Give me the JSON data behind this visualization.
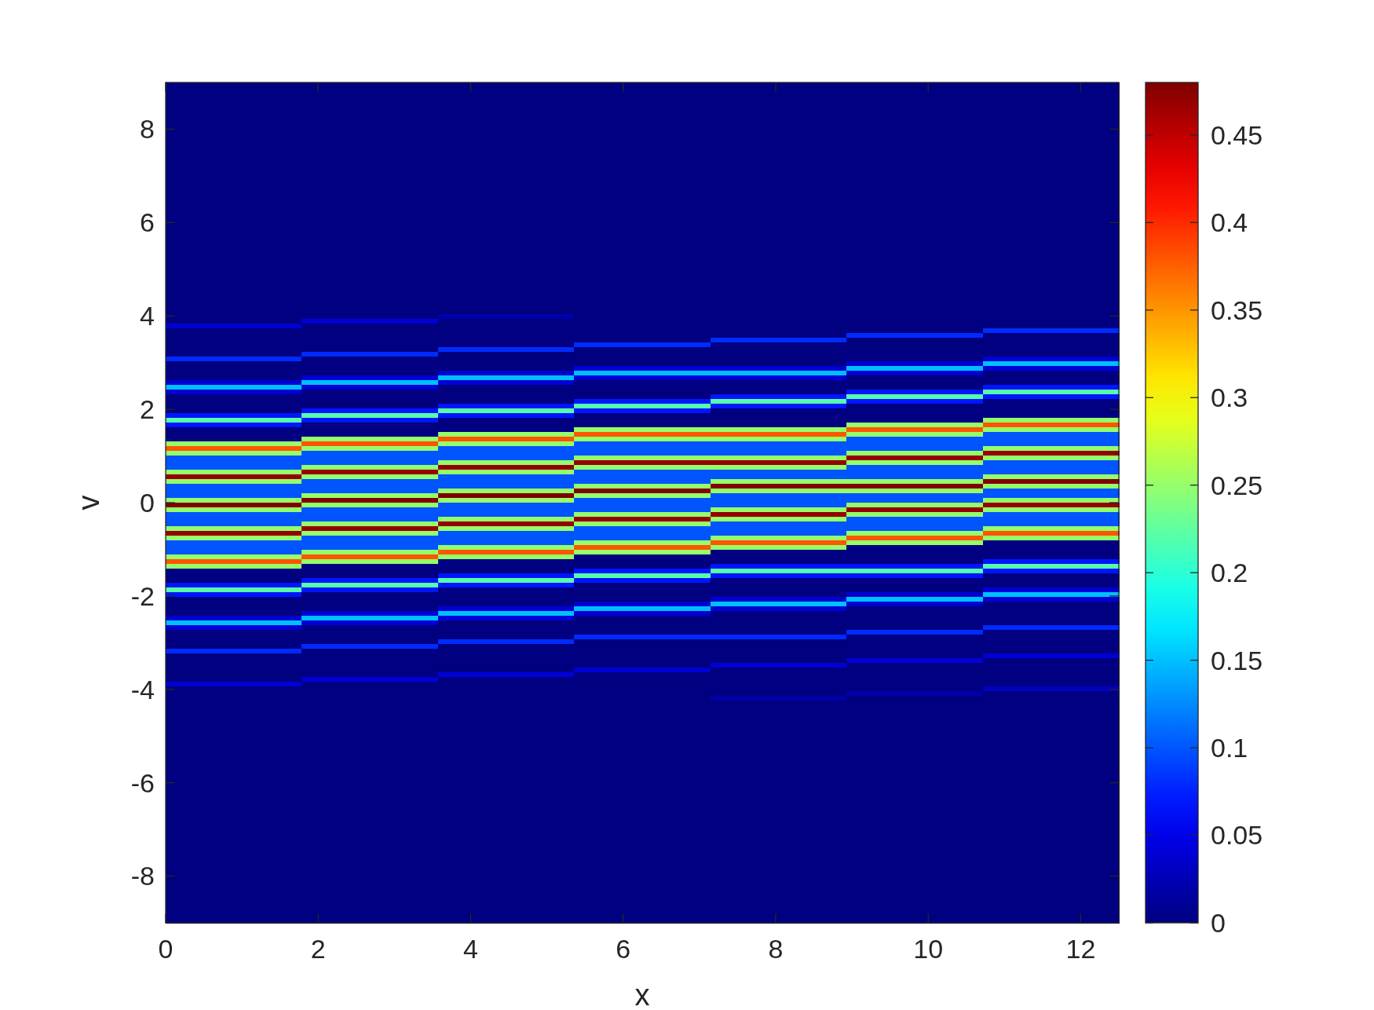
{
  "chart_data": {
    "type": "heatmap",
    "xlabel": "x",
    "ylabel": "v",
    "x": [
      0.89,
      2.68,
      4.46,
      6.25,
      8.04,
      9.82,
      11.61
    ],
    "xlim": [
      0,
      12.5
    ],
    "xticks": [
      0,
      2,
      4,
      6,
      8,
      10,
      12
    ],
    "ylim": [
      -9,
      9
    ],
    "yticks": [
      -8,
      -6,
      -4,
      -2,
      0,
      2,
      4,
      6,
      8
    ],
    "clim": [
      0,
      0.48
    ],
    "cticks": [
      0,
      0.05,
      0.1,
      0.15,
      0.2,
      0.25,
      0.3,
      0.35,
      0.4,
      0.45
    ],
    "cells": [
      [
        0,
        0,
        0,
        0,
        0,
        0,
        0
      ],
      [
        0,
        0,
        0,
        0,
        0,
        0,
        0
      ],
      [
        0,
        0,
        0,
        0,
        0,
        0,
        0
      ],
      [
        0,
        0,
        0,
        0,
        0,
        0,
        0
      ],
      [
        0,
        0,
        0,
        0,
        0,
        0,
        0
      ],
      [
        0,
        0,
        0,
        0,
        0,
        0,
        0
      ],
      [
        0,
        0,
        0,
        0,
        0,
        0,
        0
      ],
      [
        0,
        0,
        0,
        0,
        0,
        0,
        0
      ],
      [
        0,
        0,
        0,
        0,
        0,
        0,
        0
      ],
      [
        0,
        0,
        0,
        0,
        0,
        0,
        0
      ],
      [
        0,
        0,
        0,
        0,
        0,
        0,
        0
      ],
      [
        0,
        0,
        0,
        0,
        0,
        0,
        0
      ],
      [
        0,
        0,
        0,
        0,
        0,
        0,
        0
      ],
      [
        0,
        0,
        0,
        0,
        0,
        0,
        0
      ],
      [
        0,
        0,
        0,
        0,
        0,
        0,
        0
      ],
      [
        0,
        0,
        0,
        0,
        0,
        0,
        0
      ],
      [
        0,
        0,
        0,
        0,
        0,
        0,
        0
      ],
      [
        0,
        0,
        0,
        0,
        0,
        0,
        0
      ],
      [
        0,
        0,
        0,
        0,
        0,
        0,
        0
      ],
      [
        0,
        0,
        0,
        0,
        0,
        0,
        0
      ],
      [
        0,
        0,
        0,
        0,
        0,
        0,
        0
      ],
      [
        0,
        0,
        0,
        0,
        0,
        0,
        0
      ],
      [
        0,
        0,
        0,
        0,
        0,
        0,
        0
      ],
      [
        0,
        0,
        0,
        0,
        0,
        0,
        0
      ],
      [
        0,
        0,
        0,
        0,
        0,
        0,
        0
      ],
      [
        0,
        0,
        0,
        0,
        0,
        0,
        0
      ],
      [
        0,
        0,
        0,
        0,
        0,
        0,
        0
      ],
      [
        0,
        0,
        0,
        0,
        0,
        0,
        0
      ],
      [
        0,
        0,
        0,
        0,
        0,
        0,
        0
      ],
      [
        0,
        0,
        0,
        0,
        0,
        0,
        0
      ],
      [
        0,
        0,
        0,
        0,
        0,
        0,
        0
      ],
      [
        0,
        0,
        0,
        0,
        0,
        0,
        0
      ],
      [
        0,
        0,
        0,
        0,
        0,
        0,
        0
      ],
      [
        0,
        0,
        0,
        0,
        0,
        0,
        0
      ],
      [
        0,
        0,
        0,
        0,
        0,
        0,
        0
      ],
      [
        0,
        0,
        0,
        0,
        0,
        0,
        0
      ],
      [
        0,
        0,
        0,
        0,
        0,
        0,
        0
      ],
      [
        0,
        0,
        0,
        0,
        0,
        0,
        0
      ],
      [
        0,
        0,
        0,
        0,
        0,
        0,
        0
      ],
      [
        0,
        0,
        0,
        0,
        0,
        0,
        0
      ],
      [
        0,
        0,
        0,
        0,
        0,
        0,
        0
      ],
      [
        0,
        0,
        0,
        0,
        0,
        0,
        0
      ],
      [
        0,
        0,
        0,
        0,
        0,
        0,
        0
      ],
      [
        0,
        0,
        0,
        0,
        0,
        0,
        0
      ],
      [
        0,
        0,
        0,
        0,
        0,
        0,
        0
      ],
      [
        0,
        0,
        0,
        0,
        0,
        0,
        0
      ],
      [
        0,
        0,
        0,
        0,
        0,
        0,
        0
      ],
      [
        0,
        0,
        0,
        0,
        0,
        0,
        0
      ],
      [
        0,
        0,
        0,
        0,
        0,
        0,
        0
      ],
      [
        0,
        0,
        0.02,
        0,
        0,
        0,
        0
      ],
      [
        0,
        0.04,
        0,
        0,
        0,
        0,
        0
      ],
      [
        0.04,
        0,
        0,
        0,
        0,
        0,
        0
      ],
      [
        0,
        0,
        0,
        0,
        0,
        0,
        0.08
      ],
      [
        0,
        0,
        0,
        0,
        0,
        0.08,
        0
      ],
      [
        0,
        0,
        0,
        0,
        0.08,
        0,
        0
      ],
      [
        0,
        0,
        0,
        0.08,
        0,
        0,
        0
      ],
      [
        0,
        0,
        0.08,
        0,
        0,
        0,
        0
      ],
      [
        0,
        0.08,
        0,
        0,
        0,
        0,
        0
      ],
      [
        0.08,
        0,
        0,
        0,
        0,
        0,
        0.04
      ],
      [
        0,
        0,
        0,
        0,
        0,
        0.04,
        0.15
      ],
      [
        0,
        0,
        0,
        0.04,
        0.04,
        0.15,
        0.04
      ],
      [
        0,
        0,
        0.04,
        0.15,
        0.15,
        0.04,
        0
      ],
      [
        0,
        0.04,
        0.15,
        0.04,
        0.04,
        0,
        0
      ],
      [
        0.04,
        0.15,
        0.04,
        0,
        0,
        0,
        0
      ],
      [
        0.15,
        0.04,
        0,
        0,
        0,
        0,
        0.07
      ],
      [
        0.04,
        0,
        0,
        0,
        0,
        0.07,
        0.22
      ],
      [
        0,
        0,
        0,
        0,
        0.07,
        0.22,
        0.07
      ],
      [
        0,
        0,
        0,
        0.07,
        0.22,
        0.07,
        0
      ],
      [
        0,
        0,
        0.07,
        0.22,
        0.07,
        0,
        0
      ],
      [
        0,
        0.07,
        0.22,
        0.07,
        0,
        0,
        0
      ],
      [
        0.07,
        0.22,
        0.07,
        0,
        0,
        0,
        0
      ],
      [
        0.22,
        0.07,
        0,
        0,
        0,
        0,
        0.25
      ],
      [
        0.07,
        0,
        0,
        0,
        0,
        0.25,
        0.38
      ],
      [
        0,
        0,
        0,
        0.25,
        0.25,
        0.38,
        0.25
      ],
      [
        0,
        0,
        0.25,
        0.38,
        0.38,
        0.25,
        0.1
      ],
      [
        0,
        0.25,
        0.38,
        0.25,
        0.25,
        0.1,
        0.1
      ],
      [
        0.25,
        0.38,
        0.25,
        0.1,
        0.1,
        0.1,
        0.1
      ],
      [
        0.38,
        0.25,
        0.1,
        0.1,
        0.1,
        0.1,
        0.25
      ],
      [
        0.25,
        0.1,
        0.1,
        0.1,
        0.1,
        0.25,
        0.47
      ],
      [
        0.1,
        0.1,
        0.1,
        0.25,
        0.25,
        0.47,
        0.25
      ],
      [
        0.1,
        0.1,
        0.25,
        0.47,
        0.47,
        0.25,
        0.1
      ],
      [
        0.1,
        0.25,
        0.47,
        0.25,
        0.25,
        0.1,
        0.1
      ],
      [
        0.25,
        0.47,
        0.25,
        0.1,
        0.1,
        0.1,
        0.1
      ],
      [
        0.47,
        0.25,
        0.1,
        0.1,
        0.1,
        0.1,
        0.25
      ],
      [
        0.25,
        0.1,
        0.1,
        0.1,
        0.25,
        0.25,
        0.48
      ],
      [
        0.1,
        0.1,
        0.1,
        0.25,
        0.48,
        0.48,
        0.25
      ],
      [
        0.1,
        0.1,
        0.25,
        0.48,
        0.25,
        0.25,
        0.1
      ],
      [
        0.1,
        0.25,
        0.48,
        0.25,
        0.1,
        0.1,
        0.1
      ],
      [
        0.25,
        0.48,
        0.25,
        0.1,
        0.1,
        0.1,
        0.25
      ],
      [
        0.48,
        0.25,
        0.1,
        0.1,
        0.1,
        0.25,
        0.47
      ],
      [
        0.25,
        0.1,
        0.1,
        0.1,
        0.25,
        0.47,
        0.25
      ],
      [
        0.1,
        0.1,
        0.1,
        0.25,
        0.47,
        0.25,
        0.1
      ],
      [
        0.1,
        0.1,
        0.25,
        0.47,
        0.25,
        0.1,
        0.1
      ],
      [
        0.1,
        0.25,
        0.47,
        0.25,
        0.1,
        0.1,
        0.1
      ],
      [
        0.25,
        0.47,
        0.25,
        0.1,
        0.1,
        0.1,
        0.25
      ],
      [
        0.47,
        0.25,
        0.1,
        0.1,
        0.1,
        0.25,
        0.38
      ],
      [
        0.25,
        0.1,
        0.1,
        0.1,
        0.25,
        0.38,
        0.25
      ],
      [
        0.1,
        0.1,
        0.1,
        0.25,
        0.38,
        0.25,
        0
      ],
      [
        0.1,
        0.1,
        0.25,
        0.38,
        0.25,
        0,
        0
      ],
      [
        0.1,
        0.25,
        0.38,
        0.25,
        0,
        0,
        0
      ],
      [
        0.25,
        0.38,
        0.25,
        0,
        0,
        0,
        0
      ],
      [
        0.38,
        0.25,
        0,
        0,
        0,
        0,
        0.07
      ],
      [
        0.25,
        0,
        0,
        0,
        0.07,
        0.07,
        0.22
      ],
      [
        0,
        0,
        0,
        0.07,
        0.22,
        0.22,
        0.07
      ],
      [
        0,
        0,
        0.07,
        0.22,
        0.07,
        0.07,
        0
      ],
      [
        0,
        0.07,
        0.22,
        0.07,
        0,
        0,
        0
      ],
      [
        0.07,
        0.22,
        0.07,
        0,
        0,
        0,
        0
      ],
      [
        0.22,
        0.07,
        0,
        0,
        0,
        0,
        0.04
      ],
      [
        0.07,
        0,
        0,
        0,
        0,
        0.04,
        0.15
      ],
      [
        0,
        0,
        0,
        0,
        0.04,
        0.15,
        0.04
      ],
      [
        0,
        0,
        0,
        0.04,
        0.15,
        0.04,
        0
      ],
      [
        0,
        0,
        0.04,
        0.15,
        0.04,
        0,
        0
      ],
      [
        0,
        0.04,
        0.15,
        0.04,
        0,
        0,
        0
      ],
      [
        0.04,
        0.15,
        0.04,
        0,
        0,
        0,
        0
      ],
      [
        0.15,
        0.04,
        0,
        0,
        0,
        0,
        0
      ],
      [
        0.04,
        0,
        0,
        0,
        0,
        0,
        0.08
      ],
      [
        0,
        0,
        0,
        0,
        0,
        0.08,
        0
      ],
      [
        0,
        0,
        0,
        0.08,
        0.08,
        0,
        0
      ],
      [
        0,
        0,
        0.08,
        0,
        0,
        0,
        0
      ],
      [
        0,
        0.08,
        0,
        0,
        0,
        0,
        0
      ],
      [
        0.08,
        0,
        0,
        0,
        0,
        0,
        0
      ],
      [
        0,
        0,
        0,
        0,
        0,
        0,
        0.04
      ],
      [
        0,
        0,
        0,
        0,
        0,
        0.04,
        0
      ],
      [
        0,
        0,
        0,
        0,
        0.04,
        0,
        0
      ],
      [
        0,
        0,
        0,
        0.04,
        0,
        0,
        0
      ],
      [
        0,
        0,
        0.04,
        0,
        0,
        0,
        0
      ],
      [
        0,
        0.04,
        0,
        0,
        0,
        0,
        0
      ],
      [
        0.04,
        0,
        0,
        0,
        0,
        0,
        0
      ],
      [
        0,
        0,
        0,
        0,
        0,
        0,
        0.03
      ],
      [
        0,
        0,
        0,
        0,
        0,
        0.02,
        0
      ],
      [
        0,
        0,
        0,
        0,
        0.02,
        0,
        0
      ],
      [
        0,
        0,
        0,
        0,
        0,
        0,
        0
      ],
      [
        0,
        0,
        0,
        0,
        0,
        0,
        0
      ],
      [
        0,
        0,
        0,
        0,
        0,
        0,
        0
      ],
      [
        0,
        0,
        0,
        0,
        0,
        0,
        0
      ],
      [
        0,
        0,
        0,
        0,
        0,
        0,
        0
      ],
      [
        0,
        0,
        0,
        0,
        0,
        0,
        0
      ],
      [
        0,
        0,
        0,
        0,
        0,
        0,
        0
      ],
      [
        0,
        0,
        0,
        0,
        0,
        0,
        0
      ],
      [
        0,
        0,
        0,
        0,
        0,
        0,
        0
      ],
      [
        0,
        0,
        0,
        0,
        0,
        0,
        0
      ],
      [
        0,
        0,
        0,
        0,
        0,
        0,
        0
      ],
      [
        0,
        0,
        0,
        0,
        0,
        0,
        0
      ],
      [
        0,
        0,
        0,
        0,
        0,
        0,
        0
      ],
      [
        0,
        0,
        0,
        0,
        0,
        0,
        0
      ],
      [
        0,
        0,
        0,
        0,
        0,
        0,
        0
      ],
      [
        0,
        0,
        0,
        0,
        0,
        0,
        0
      ],
      [
        0,
        0,
        0,
        0,
        0,
        0,
        0
      ],
      [
        0,
        0,
        0,
        0,
        0,
        0,
        0
      ],
      [
        0,
        0,
        0,
        0,
        0,
        0,
        0
      ],
      [
        0,
        0,
        0,
        0,
        0,
        0,
        0
      ],
      [
        0,
        0,
        0,
        0,
        0,
        0,
        0
      ],
      [
        0,
        0,
        0,
        0,
        0,
        0,
        0
      ],
      [
        0,
        0,
        0,
        0,
        0,
        0,
        0
      ],
      [
        0,
        0,
        0,
        0,
        0,
        0,
        0
      ],
      [
        0,
        0,
        0,
        0,
        0,
        0,
        0
      ],
      [
        0,
        0,
        0,
        0,
        0,
        0,
        0
      ],
      [
        0,
        0,
        0,
        0,
        0,
        0,
        0
      ],
      [
        0,
        0,
        0,
        0,
        0,
        0,
        0
      ],
      [
        0,
        0,
        0,
        0,
        0,
        0,
        0
      ],
      [
        0,
        0,
        0,
        0,
        0,
        0,
        0
      ],
      [
        0,
        0,
        0,
        0,
        0,
        0,
        0
      ],
      [
        0,
        0,
        0,
        0,
        0,
        0,
        0
      ],
      [
        0,
        0,
        0,
        0,
        0,
        0,
        0
      ],
      [
        0,
        0,
        0,
        0,
        0,
        0,
        0
      ],
      [
        0,
        0,
        0,
        0,
        0,
        0,
        0
      ],
      [
        0,
        0,
        0,
        0,
        0,
        0,
        0
      ],
      [
        0,
        0,
        0,
        0,
        0,
        0,
        0
      ],
      [
        0,
        0,
        0,
        0,
        0,
        0,
        0
      ],
      [
        0,
        0,
        0,
        0,
        0,
        0,
        0
      ],
      [
        0,
        0,
        0,
        0,
        0,
        0,
        0
      ],
      [
        0,
        0,
        0,
        0,
        0,
        0,
        0
      ],
      [
        0,
        0,
        0,
        0,
        0,
        0,
        0
      ],
      [
        0,
        0,
        0,
        0,
        0,
        0,
        0
      ],
      [
        0,
        0,
        0,
        0,
        0,
        0,
        0
      ],
      [
        0,
        0,
        0,
        0,
        0,
        0,
        0
      ],
      [
        0,
        0,
        0,
        0,
        0,
        0,
        0
      ],
      [
        0,
        0,
        0,
        0,
        0,
        0,
        0
      ]
    ]
  }
}
